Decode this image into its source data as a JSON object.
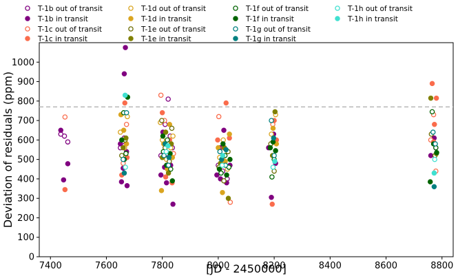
{
  "chart_data": {
    "type": "scatter",
    "title": "",
    "xlabel": "[JD - 2450000]",
    "ylabel": "Deviation of residuals (ppm)",
    "xlim": [
      7360,
      8840
    ],
    "ylim": [
      0,
      1100
    ],
    "xticks": [
      7400,
      7600,
      7800,
      8000,
      8200,
      8400,
      8600,
      8800
    ],
    "yticks": [
      0,
      100,
      200,
      300,
      400,
      500,
      600,
      700,
      800,
      900,
      1000
    ],
    "reference_line": {
      "y": 770,
      "style": "dashed",
      "color": "#bbbbbb"
    },
    "legend_placement": "above plot, 4 columns",
    "series": [
      {
        "name": "T-1b out of transit",
        "color": "#800080",
        "filled": false,
        "points": [
          [
            7437,
            630
          ],
          [
            7450,
            620
          ],
          [
            7462,
            590
          ],
          [
            7650,
            560
          ],
          [
            7657,
            590
          ],
          [
            7664,
            610
          ],
          [
            7810,
            680
          ],
          [
            7828,
            620
          ],
          [
            7836,
            560
          ],
          [
            8000,
            470
          ],
          [
            8016,
            440
          ],
          [
            8032,
            400
          ],
          [
            7821,
            810
          ],
          [
            7795,
            520
          ]
        ]
      },
      {
        "name": "T-1b in transit",
        "color": "#800080",
        "filled": true,
        "points": [
          [
            7437,
            650
          ],
          [
            7447,
            395
          ],
          [
            7462,
            478
          ],
          [
            7654,
            385
          ],
          [
            7660,
            455
          ],
          [
            7664,
            940
          ],
          [
            7668,
            1075
          ],
          [
            7674,
            365
          ],
          [
            7650,
            580
          ],
          [
            7672,
            540
          ],
          [
            7795,
            420
          ],
          [
            7802,
            640
          ],
          [
            7808,
            460
          ],
          [
            7815,
            380
          ],
          [
            7830,
            470
          ],
          [
            7838,
            270
          ],
          [
            7822,
            510
          ],
          [
            7995,
            420
          ],
          [
            8008,
            400
          ],
          [
            8020,
            650
          ],
          [
            8030,
            380
          ],
          [
            8042,
            470
          ],
          [
            8007,
            560
          ],
          [
            8190,
            305
          ],
          [
            8198,
            630
          ],
          [
            8205,
            480
          ],
          [
            8180,
            560
          ],
          [
            8760,
            520
          ],
          [
            8772,
            610
          ],
          [
            8778,
            560
          ]
        ]
      },
      {
        "name": "T-1c out of transit",
        "color": "#fa6c4c",
        "filled": false,
        "points": [
          [
            7452,
            718
          ],
          [
            7660,
            480
          ],
          [
            7672,
            680
          ],
          [
            7795,
            830
          ],
          [
            7808,
            700
          ],
          [
            7822,
            460
          ],
          [
            7840,
            530
          ],
          [
            8002,
            720
          ],
          [
            8020,
            560
          ],
          [
            8043,
            280
          ],
          [
            8195,
            680
          ],
          [
            8760,
            600
          ],
          [
            8770,
            730
          ],
          [
            8778,
            440
          ]
        ]
      },
      {
        "name": "T-1c in transit",
        "color": "#fa6c4c",
        "filled": true,
        "points": [
          [
            7452,
            345
          ],
          [
            7655,
            420
          ],
          [
            7666,
            790
          ],
          [
            7674,
            510
          ],
          [
            7800,
            740
          ],
          [
            7812,
            410
          ],
          [
            7826,
            600
          ],
          [
            7835,
            380
          ],
          [
            7998,
            600
          ],
          [
            8015,
            500
          ],
          [
            8028,
            790
          ],
          [
            8040,
            610
          ],
          [
            8193,
            270
          ],
          [
            8200,
            700
          ],
          [
            8208,
            600
          ],
          [
            8765,
            890
          ],
          [
            8773,
            680
          ],
          [
            8780,
            815
          ],
          [
            8770,
            590
          ]
        ]
      },
      {
        "name": "T-1d out of transit",
        "color": "#daa520",
        "filled": false,
        "points": [
          [
            7650,
            640
          ],
          [
            7665,
            560
          ],
          [
            7675,
            720
          ],
          [
            7793,
            690
          ],
          [
            7800,
            600
          ],
          [
            7815,
            500
          ],
          [
            7830,
            560
          ],
          [
            7838,
            620
          ],
          [
            8005,
            510
          ],
          [
            8018,
            600
          ],
          [
            8033,
            450
          ],
          [
            8190,
            630
          ],
          [
            8205,
            730
          ]
        ]
      },
      {
        "name": "T-1d in transit",
        "color": "#daa520",
        "filled": true,
        "points": [
          [
            7652,
            730
          ],
          [
            7662,
            650
          ],
          [
            7672,
            580
          ],
          [
            7797,
            340
          ],
          [
            7805,
            580
          ],
          [
            7818,
            450
          ],
          [
            7826,
            680
          ],
          [
            7836,
            510
          ],
          [
            8000,
            560
          ],
          [
            8015,
            330
          ],
          [
            8025,
            490
          ],
          [
            8040,
            630
          ],
          [
            8196,
            660
          ],
          [
            8208,
            580
          ]
        ]
      },
      {
        "name": "T-1e out of transit",
        "color": "#6b6b00",
        "filled": false,
        "points": [
          [
            7655,
            520
          ],
          [
            7667,
            600
          ],
          [
            7798,
            700
          ],
          [
            7810,
            560
          ],
          [
            7825,
            490
          ],
          [
            7834,
            660
          ],
          [
            8003,
            460
          ],
          [
            8020,
            390
          ],
          [
            8035,
            540
          ],
          [
            8188,
            580
          ],
          [
            8200,
            440
          ],
          [
            8762,
            630
          ],
          [
            8775,
            520
          ]
        ]
      },
      {
        "name": "T-1e in transit",
        "color": "#808000",
        "filled": true,
        "points": [
          [
            7660,
            560
          ],
          [
            7670,
            610
          ],
          [
            7800,
            510
          ],
          [
            7812,
            640
          ],
          [
            7822,
            430
          ],
          [
            7832,
            580
          ],
          [
            8008,
            480
          ],
          [
            8022,
            560
          ],
          [
            8036,
            300
          ],
          [
            8194,
            520
          ],
          [
            8203,
            745
          ],
          [
            8760,
            815
          ],
          [
            8780,
            530
          ]
        ]
      },
      {
        "name": "T-1f out of transit",
        "color": "#006400",
        "filled": false,
        "points": [
          [
            7662,
            740
          ],
          [
            7670,
            530
          ],
          [
            7804,
            540
          ],
          [
            7818,
            600
          ],
          [
            7830,
            450
          ],
          [
            8010,
            430
          ],
          [
            8024,
            520
          ],
          [
            8038,
            460
          ],
          [
            8192,
            410
          ],
          [
            8200,
            500
          ],
          [
            8765,
            745
          ],
          [
            8778,
            560
          ]
        ]
      },
      {
        "name": "T-1f in transit",
        "color": "#006400",
        "filled": true,
        "points": [
          [
            7655,
            600
          ],
          [
            7664,
            500
          ],
          [
            7676,
            820
          ],
          [
            7802,
            620
          ],
          [
            7815,
            470
          ],
          [
            7828,
            530
          ],
          [
            7836,
            390
          ],
          [
            8004,
            450
          ],
          [
            8017,
            580
          ],
          [
            8030,
            420
          ],
          [
            8042,
            500
          ],
          [
            8186,
            560
          ],
          [
            8196,
            590
          ],
          [
            8205,
            545
          ],
          [
            8758,
            385
          ],
          [
            8770,
            580
          ],
          [
            8781,
            535
          ]
        ]
      },
      {
        "name": "T-1g out of transit",
        "color": "#008080",
        "filled": false,
        "points": [
          [
            7660,
            500
          ],
          [
            7672,
            740
          ],
          [
            7806,
            520
          ],
          [
            7822,
            470
          ],
          [
            8006,
            540
          ],
          [
            8026,
            470
          ],
          [
            8190,
            700
          ],
          [
            8200,
            520
          ],
          [
            8768,
            640
          ],
          [
            8776,
            580
          ]
        ]
      },
      {
        "name": "T-1g in transit",
        "color": "#008080",
        "filled": true,
        "points": [
          [
            7664,
            430
          ],
          [
            7810,
            580
          ],
          [
            7824,
            510
          ],
          [
            8012,
            500
          ],
          [
            8028,
            550
          ],
          [
            8198,
            610
          ],
          [
            8772,
            360
          ]
        ]
      },
      {
        "name": "T-1h out of transit",
        "color": "#40e0d0",
        "filled": false,
        "points": [
          [
            7668,
            460
          ],
          [
            7814,
            540
          ],
          [
            8014,
            470
          ],
          [
            8196,
            460
          ],
          [
            8774,
            500
          ]
        ]
      },
      {
        "name": "T-1h in transit",
        "color": "#40e0d0",
        "filled": true,
        "points": [
          [
            7667,
            830
          ],
          [
            7820,
            570
          ],
          [
            8016,
            520
          ],
          [
            8202,
            490
          ],
          [
            8772,
            430
          ]
        ]
      }
    ]
  }
}
